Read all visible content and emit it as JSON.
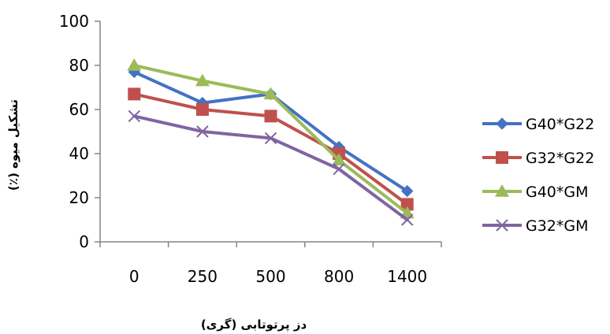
{
  "chart_data": {
    "type": "line",
    "title": "",
    "xlabel": "دز پرتوتابی (گری)",
    "ylabel": "تشکیل میوه (٪)",
    "categories": [
      "0",
      "250",
      "500",
      "800",
      "1400"
    ],
    "ylim": [
      0,
      100
    ],
    "yticks": [
      0,
      20,
      40,
      60,
      80,
      100
    ],
    "grid": false,
    "legend_position": "right",
    "series": [
      {
        "name": "G40*G22",
        "color": "#4472C4",
        "marker": "diamond",
        "values": [
          77,
          63,
          67,
          43,
          23
        ]
      },
      {
        "name": "G32*G22",
        "color": "#C0504D",
        "marker": "square",
        "values": [
          67,
          60,
          57,
          40,
          17
        ]
      },
      {
        "name": "G40*GM",
        "color": "#9BBB59",
        "marker": "triangle",
        "values": [
          80,
          73,
          67,
          37,
          13
        ]
      },
      {
        "name": "G32*GM",
        "color": "#8064A2",
        "marker": "x",
        "values": [
          57,
          50,
          47,
          33,
          10
        ]
      }
    ]
  }
}
